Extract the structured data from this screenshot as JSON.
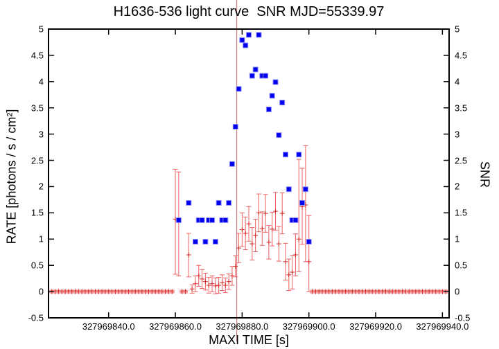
{
  "title": "H1636-536 light curve  SNR MJD=55339.97",
  "xlabel": "MAXI TIME [s]",
  "ylabel_left": "RATE [photons / s / cm²]",
  "ylabel_right": "SNR",
  "colors": {
    "rate_bar": "#ee6060",
    "rate_marker": "#d42222",
    "snr_fill": "#0000ee",
    "snr_edge": "#9090ff",
    "event_line": "#cc6666",
    "axis": "#000000"
  },
  "chart_data": {
    "type": "scatter",
    "x_range": [
      327969822,
      327969942
    ],
    "y_range": [
      -0.5,
      5
    ],
    "grid": false,
    "legend": "none",
    "t_base": 327969000,
    "event_line_t": 878.4,
    "x_ticks": [
      {
        "v": 327969840,
        "label": "327969840.0"
      },
      {
        "v": 327969860,
        "label": "327969860.0"
      },
      {
        "v": 327969880,
        "label": "327969880.0"
      },
      {
        "v": 327969900,
        "label": "327969900.0"
      },
      {
        "v": 327969920,
        "label": "327969920.0"
      },
      {
        "v": 327969940,
        "label": "327969940.0"
      }
    ],
    "y_ticks": [
      {
        "v": 5,
        "label": "5"
      },
      {
        "v": 4.5,
        "label": "4.5"
      },
      {
        "v": 4,
        "label": "4"
      },
      {
        "v": 3.5,
        "label": "3.5"
      },
      {
        "v": 3,
        "label": "3"
      },
      {
        "v": 2.5,
        "label": "2.5"
      },
      {
        "v": 2,
        "label": "2"
      },
      {
        "v": 1.5,
        "label": "1.5"
      },
      {
        "v": 1,
        "label": "1"
      },
      {
        "v": 0.5,
        "label": "0.5"
      },
      {
        "v": 0,
        "label": "0"
      },
      {
        "v": -0.5,
        "label": "-0.5"
      }
    ],
    "series": [
      {
        "name": "RATE",
        "type": "errorbar",
        "axis": "left",
        "points": [
          [
            823,
            0
          ],
          [
            824,
            0
          ],
          [
            825,
            0
          ],
          [
            826,
            0
          ],
          [
            827,
            0
          ],
          [
            828,
            0
          ],
          [
            829,
            0
          ],
          [
            830,
            0
          ],
          [
            831,
            0
          ],
          [
            832,
            0
          ],
          [
            833,
            0
          ],
          [
            834,
            0
          ],
          [
            835,
            0
          ],
          [
            836,
            0
          ],
          [
            837,
            0
          ],
          [
            838,
            0
          ],
          [
            839,
            0
          ],
          [
            840,
            0
          ],
          [
            841,
            0
          ],
          [
            842,
            0
          ],
          [
            843,
            0
          ],
          [
            844,
            0
          ],
          [
            845,
            0
          ],
          [
            846,
            0
          ],
          [
            847,
            0
          ],
          [
            848,
            0
          ],
          [
            849,
            0
          ],
          [
            850,
            0
          ],
          [
            851,
            0
          ],
          [
            852,
            0
          ],
          [
            853,
            0
          ],
          [
            854,
            0
          ],
          [
            855,
            0
          ],
          [
            856,
            0
          ],
          [
            857,
            0
          ],
          [
            858,
            0
          ],
          [
            859,
            0
          ],
          [
            860,
            1.38,
            0.33,
            2.33
          ],
          [
            861,
            1.35,
            0.3,
            2.28
          ],
          [
            862,
            0
          ],
          [
            863,
            0
          ],
          [
            864,
            0.7,
            0.28,
            1.11
          ],
          [
            865,
            0.05,
            -0.03,
            0.13
          ],
          [
            866,
            0.15,
            0.0,
            0.3
          ],
          [
            867,
            0.3,
            0.1,
            0.5
          ],
          [
            868,
            0.24,
            0.06,
            0.42
          ],
          [
            869,
            0.19,
            0.03,
            0.35
          ],
          [
            870,
            0.12,
            -0.03,
            0.27
          ],
          [
            871,
            0.15,
            0.0,
            0.3
          ],
          [
            872,
            0.11,
            -0.04,
            0.26
          ],
          [
            873,
            0.12,
            -0.03,
            0.27
          ],
          [
            874,
            0.17,
            0.02,
            0.32
          ],
          [
            875,
            0.12,
            -0.02,
            0.26
          ],
          [
            876,
            0.19,
            0.04,
            0.34
          ],
          [
            877,
            0.3,
            0.12,
            0.48
          ],
          [
            878,
            0.48,
            0.28,
            0.68
          ],
          [
            879,
            0.83,
            0.55,
            1.11
          ],
          [
            880,
            1.18,
            0.86,
            1.5
          ],
          [
            881,
            1.11,
            0.8,
            1.42
          ],
          [
            882,
            1.29,
            0.96,
            1.62
          ],
          [
            883,
            0.91,
            0.6,
            1.22
          ],
          [
            884,
            1.07,
            0.76,
            1.38
          ],
          [
            885,
            1.5,
            1.14,
            1.86
          ],
          [
            886,
            1.2,
            0.88,
            1.52
          ],
          [
            887,
            1.49,
            1.13,
            1.85
          ],
          [
            888,
            0.94,
            0.62,
            1.26
          ],
          [
            889,
            1.19,
            0.87,
            1.51
          ],
          [
            890,
            1.53,
            1.17,
            1.89
          ],
          [
            891,
            0.91,
            0.58,
            1.24
          ],
          [
            892,
            1.49,
            1.1,
            1.88
          ],
          [
            893,
            0.57,
            0.22,
            0.92
          ],
          [
            894,
            0.32,
            0.02,
            0.62
          ],
          [
            895,
            0.37,
            0.05,
            0.69
          ],
          [
            896,
            0.7,
            0.3,
            1.1
          ],
          [
            897,
            1.0,
            0.38,
            2.52
          ],
          [
            898,
            1.62,
            0.9,
            2.35
          ],
          [
            899,
            1.65,
            0.57,
            2.78
          ],
          [
            900,
            0.57,
            0.0,
            1.45
          ],
          [
            901,
            0
          ],
          [
            902,
            0
          ],
          [
            903,
            0
          ],
          [
            904,
            0
          ],
          [
            905,
            0
          ],
          [
            906,
            0
          ],
          [
            907,
            0
          ],
          [
            908,
            0
          ],
          [
            909,
            0
          ],
          [
            910,
            0
          ],
          [
            911,
            0
          ],
          [
            912,
            0
          ],
          [
            913,
            0
          ],
          [
            914,
            0
          ],
          [
            915,
            0
          ],
          [
            916,
            0
          ],
          [
            917,
            0
          ],
          [
            918,
            0
          ],
          [
            919,
            0
          ],
          [
            920,
            0
          ],
          [
            921,
            0
          ],
          [
            922,
            0
          ],
          [
            923,
            0
          ],
          [
            924,
            0
          ],
          [
            925,
            0
          ],
          [
            926,
            0
          ],
          [
            927,
            0
          ],
          [
            928,
            0
          ],
          [
            929,
            0
          ],
          [
            930,
            0
          ],
          [
            931,
            0
          ],
          [
            932,
            0
          ],
          [
            933,
            0
          ],
          [
            934,
            0
          ],
          [
            935,
            0
          ],
          [
            936,
            0
          ],
          [
            937,
            0
          ],
          [
            938,
            0
          ],
          [
            939,
            0
          ],
          [
            940,
            0
          ],
          [
            941,
            0
          ]
        ]
      },
      {
        "name": "SNR",
        "type": "square",
        "axis": "right",
        "points": [
          [
            861,
            1.36
          ],
          [
            864,
            1.69
          ],
          [
            866,
            0.95
          ],
          [
            867,
            1.36
          ],
          [
            868,
            1.36
          ],
          [
            869,
            0.95
          ],
          [
            870,
            1.36
          ],
          [
            871,
            1.36
          ],
          [
            872,
            0.95
          ],
          [
            873,
            1.69
          ],
          [
            874,
            1.36
          ],
          [
            875,
            1.36
          ],
          [
            876,
            1.69
          ],
          [
            877,
            2.43
          ],
          [
            878,
            3.14
          ],
          [
            879,
            3.86
          ],
          [
            880,
            4.79
          ],
          [
            881,
            4.69
          ],
          [
            882,
            4.89
          ],
          [
            883,
            4.11
          ],
          [
            884,
            4.23
          ],
          [
            885,
            4.89
          ],
          [
            886,
            4.11
          ],
          [
            887,
            4.11
          ],
          [
            888,
            3.47
          ],
          [
            889,
            3.73
          ],
          [
            890,
            3.99
          ],
          [
            891,
            2.98
          ],
          [
            892,
            3.6
          ],
          [
            893,
            2.61
          ],
          [
            894,
            1.95
          ],
          [
            895,
            1.36
          ],
          [
            896,
            1.36
          ],
          [
            897,
            2.61
          ],
          [
            898,
            1.69
          ],
          [
            899,
            1.95
          ],
          [
            900,
            0.95
          ]
        ]
      }
    ]
  }
}
